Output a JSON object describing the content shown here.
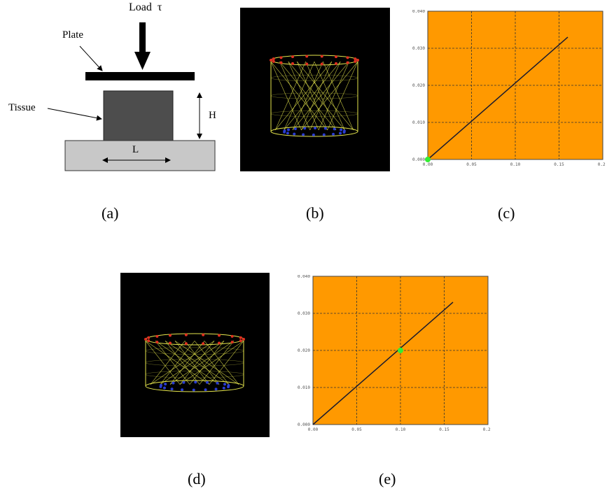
{
  "panel_a": {
    "load_label": "Load  τ",
    "plate_label": "Plate",
    "tissue_label": "Tissue",
    "height_label": "H",
    "length_label": "L",
    "colors": {
      "plate": "#000000",
      "tissue": "#4d4d4d",
      "base": "#c8c8c8"
    }
  },
  "captions": {
    "a": "(a)",
    "b": "(b)",
    "c": "(c)",
    "d": "(d)",
    "e": "(e)"
  },
  "simulation_colors": {
    "background": "#000000",
    "mesh": "#e6e64d",
    "top_nodes": "#e03020",
    "bottom_nodes": "#2a3cd0"
  },
  "plot_colors": {
    "background": "#ff9900",
    "line": "#1a1a2e",
    "marker": "#33ee33",
    "grid": "#333333"
  },
  "plot_c": {
    "x_ticks": [
      "0.00",
      "0.05",
      "0.10",
      "0.15",
      "0.20"
    ],
    "y_ticks": [
      "0.040",
      "0.030",
      "0.020",
      "0.010",
      "0.000"
    ],
    "line": {
      "x": [
        0.0,
        0.16
      ],
      "y": [
        0.0,
        0.033
      ]
    },
    "marker": {
      "x": 0.0,
      "y": 0.0
    }
  },
  "plot_e": {
    "x_ticks": [
      "0.00",
      "0.05",
      "0.10",
      "0.15",
      "0.20"
    ],
    "y_ticks": [
      "0.040",
      "0.030",
      "0.020",
      "0.010",
      "0.000"
    ],
    "line": {
      "x": [
        0.0,
        0.16
      ],
      "y": [
        0.0,
        0.033
      ]
    },
    "marker": {
      "x": 0.1,
      "y": 0.02
    }
  }
}
